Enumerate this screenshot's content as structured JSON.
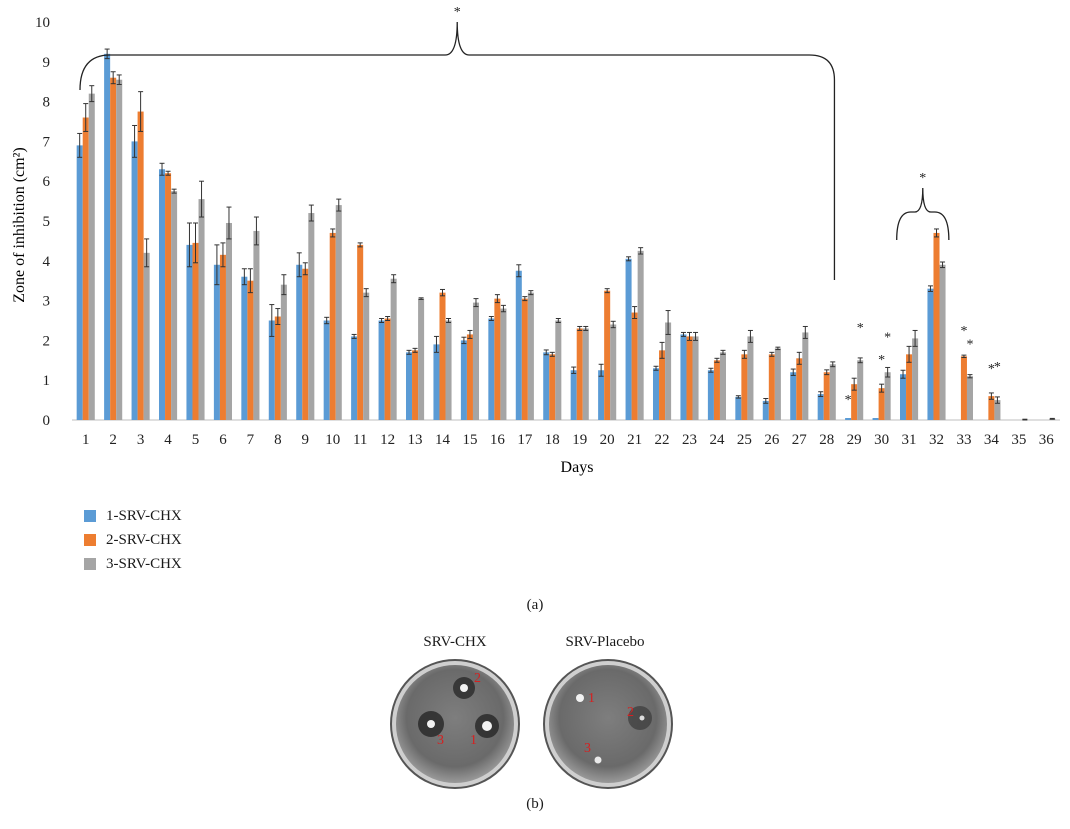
{
  "chart_data": {
    "type": "bar",
    "ylabel": "Zone of inhibition (cm²)",
    "xlabel": "Days",
    "ylim": [
      0,
      10
    ],
    "yticks": [
      0,
      1,
      2,
      3,
      4,
      5,
      6,
      7,
      8,
      9,
      10
    ],
    "categories": [
      "1",
      "2",
      "3",
      "4",
      "5",
      "6",
      "7",
      "8",
      "9",
      "10",
      "11",
      "12",
      "13",
      "14",
      "15",
      "16",
      "17",
      "18",
      "19",
      "20",
      "21",
      "22",
      "23",
      "24",
      "25",
      "26",
      "27",
      "28",
      "29",
      "30",
      "31",
      "32",
      "33",
      "34",
      "35",
      "36"
    ],
    "series": [
      {
        "name": "1-SRV-CHX",
        "color": "#5b9bd5",
        "values": [
          6.9,
          9.2,
          7.0,
          6.3,
          4.4,
          3.9,
          3.6,
          2.5,
          3.9,
          2.5,
          2.1,
          2.5,
          1.7,
          1.9,
          2.0,
          2.55,
          3.75,
          1.7,
          1.25,
          1.25,
          4.05,
          1.3,
          2.15,
          1.25,
          0.58,
          0.48,
          1.2,
          0.65,
          0.05,
          0.05,
          1.15,
          3.3,
          0.0,
          0.0,
          0.0,
          0.0
        ],
        "errors": [
          0.3,
          0.12,
          0.4,
          0.15,
          0.55,
          0.5,
          0.2,
          0.4,
          0.3,
          0.08,
          0.05,
          0.05,
          0.05,
          0.2,
          0.08,
          0.05,
          0.15,
          0.06,
          0.08,
          0.15,
          0.05,
          0.05,
          0.05,
          0.05,
          0.03,
          0.06,
          0.08,
          0.06,
          0.0,
          0.0,
          0.1,
          0.07,
          0.0,
          0.0,
          0.0,
          0.0
        ]
      },
      {
        "name": "2-SRV-CHX",
        "color": "#ed7d31",
        "values": [
          7.6,
          8.6,
          7.75,
          6.2,
          4.45,
          4.15,
          3.5,
          2.6,
          3.8,
          4.7,
          4.4,
          2.55,
          1.75,
          3.2,
          2.15,
          3.05,
          3.05,
          1.65,
          2.3,
          3.25,
          2.7,
          1.75,
          2.1,
          1.5,
          1.65,
          1.65,
          1.55,
          1.2,
          0.9,
          0.8,
          1.65,
          4.7,
          1.6,
          0.6,
          0.0,
          0.0
        ],
        "errors": [
          0.35,
          0.15,
          0.5,
          0.05,
          0.5,
          0.3,
          0.3,
          0.2,
          0.15,
          0.1,
          0.05,
          0.05,
          0.05,
          0.08,
          0.1,
          0.1,
          0.05,
          0.05,
          0.05,
          0.05,
          0.15,
          0.2,
          0.1,
          0.05,
          0.1,
          0.05,
          0.15,
          0.06,
          0.15,
          0.1,
          0.2,
          0.1,
          0.03,
          0.08,
          0.0,
          0.0
        ]
      },
      {
        "name": "3-SRV-CHX",
        "color": "#a5a5a5",
        "values": [
          8.2,
          8.55,
          4.2,
          5.75,
          5.55,
          4.95,
          4.75,
          3.4,
          5.2,
          5.4,
          3.2,
          3.55,
          3.05,
          2.5,
          2.95,
          2.8,
          3.2,
          2.5,
          2.3,
          2.4,
          4.25,
          2.45,
          2.1,
          1.7,
          2.1,
          1.8,
          2.2,
          1.4,
          1.5,
          1.2,
          2.05,
          3.9,
          1.1,
          0.5,
          0.0,
          0.03
        ],
        "errors": [
          0.2,
          0.12,
          0.35,
          0.05,
          0.45,
          0.4,
          0.35,
          0.25,
          0.2,
          0.15,
          0.1,
          0.1,
          0.02,
          0.05,
          0.1,
          0.08,
          0.05,
          0.05,
          0.05,
          0.08,
          0.08,
          0.3,
          0.1,
          0.05,
          0.15,
          0.03,
          0.15,
          0.06,
          0.06,
          0.12,
          0.2,
          0.07,
          0.04,
          0.08,
          0.02,
          0.01
        ]
      }
    ],
    "annotations": {
      "bracket_days_1_28": "*",
      "bracket_days_31_32": "*",
      "star_marks": [
        {
          "day": 29,
          "series": 0,
          "text": "*"
        },
        {
          "day": 29,
          "series": 2,
          "text": "*"
        },
        {
          "day": 30,
          "series": 1,
          "text": "*"
        },
        {
          "day": 30,
          "series": 2,
          "text": "*"
        },
        {
          "day": 33,
          "series": 1,
          "text": "*"
        },
        {
          "day": 33,
          "series": 2,
          "text": "*"
        },
        {
          "day": 34,
          "series": 1,
          "text": "*"
        },
        {
          "day": 34,
          "series": 2,
          "text": "*"
        }
      ]
    },
    "legend_position": "bottom-left"
  },
  "captions": {
    "panel_a": "(a)",
    "panel_b": "(b)"
  },
  "panel_b": {
    "dish_left": {
      "label": "SRV-CHX",
      "numbers": [
        "2",
        "3",
        "1"
      ]
    },
    "dish_right": {
      "label": "SRV-Placebo",
      "numbers": [
        "1",
        "2",
        "3"
      ]
    }
  }
}
